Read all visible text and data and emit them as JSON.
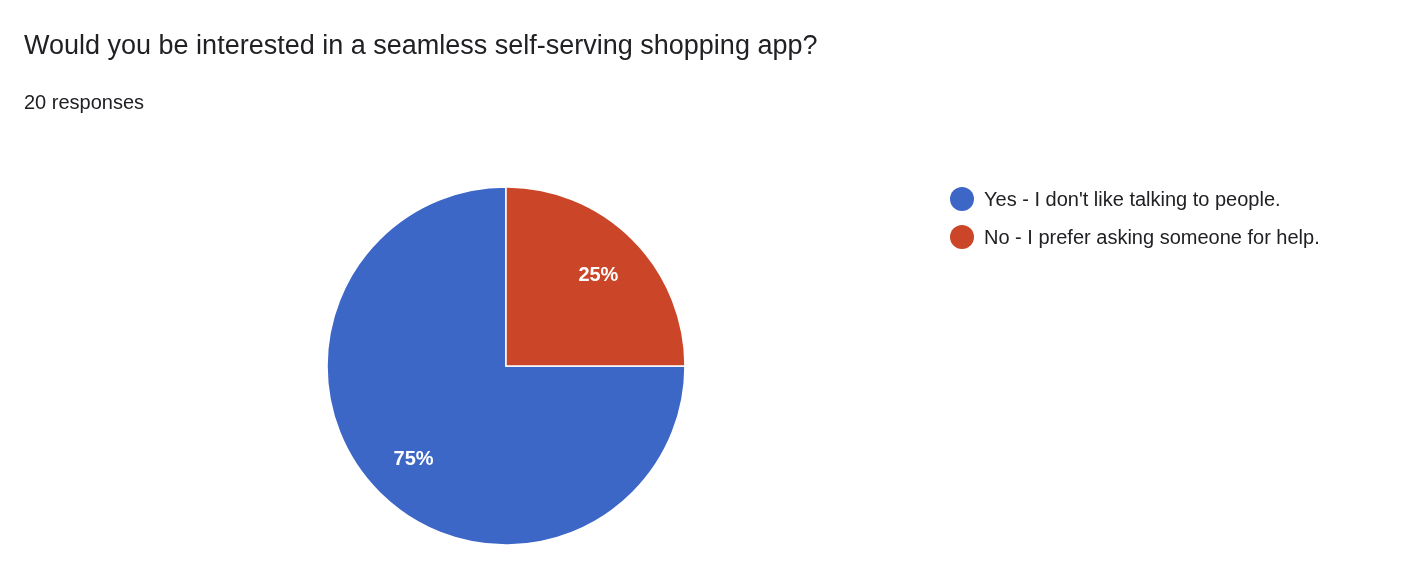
{
  "chart_data": {
    "type": "pie",
    "title": "Would you be interested in a seamless self-serving shopping app?",
    "subtitle": "20 responses",
    "categories": [
      "Yes - I don't like talking to people.",
      "No - I prefer asking someone for help."
    ],
    "values": [
      75,
      25
    ],
    "colors": [
      "#3d67c6",
      "#cb4528"
    ],
    "value_labels": [
      "75%",
      "25%"
    ],
    "legend": "right"
  }
}
